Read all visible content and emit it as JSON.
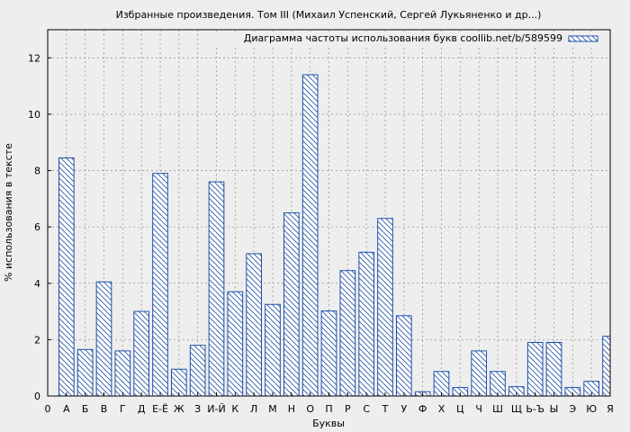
{
  "chart_data": {
    "type": "bar",
    "title": "Избранные произведения. Том III (Михаил Успенский, Сергей Лукьяненко и др...)",
    "xlabel": "Буквы",
    "ylabel": "% использования в тексте",
    "legend": {
      "label": "Диаграмма частоты использования букв coollib.net/b/589599",
      "position": "top-right"
    },
    "origin_label": "0",
    "categories": [
      "А",
      "Б",
      "В",
      "Г",
      "Д",
      "Е-Ё",
      "Ж",
      "З",
      "И-Й",
      "К",
      "Л",
      "М",
      "Н",
      "О",
      "П",
      "Р",
      "С",
      "Т",
      "У",
      "Ф",
      "Х",
      "Ц",
      "Ч",
      "Ш",
      "Щ",
      "Ь-Ъ",
      "Ы",
      "Э",
      "Ю",
      "Я"
    ],
    "values": [
      8.45,
      1.65,
      4.05,
      1.6,
      3.0,
      7.9,
      0.95,
      1.8,
      7.6,
      3.7,
      5.05,
      3.25,
      6.5,
      11.4,
      3.02,
      4.45,
      5.1,
      6.3,
      2.85,
      0.15,
      0.87,
      0.3,
      1.6,
      0.87,
      0.33,
      1.9,
      1.9,
      0.3,
      0.52,
      2.12
    ],
    "yticks": [
      0,
      2,
      4,
      6,
      8,
      10,
      12
    ],
    "ylim": [
      0,
      13
    ],
    "grid": true,
    "colors": {
      "bar_stroke": "#1f4fa8",
      "hatch": "#1f4fa8",
      "bar_fill": "#ffffff",
      "plot_bg": "#eeeeee",
      "grid": "#999999"
    }
  }
}
